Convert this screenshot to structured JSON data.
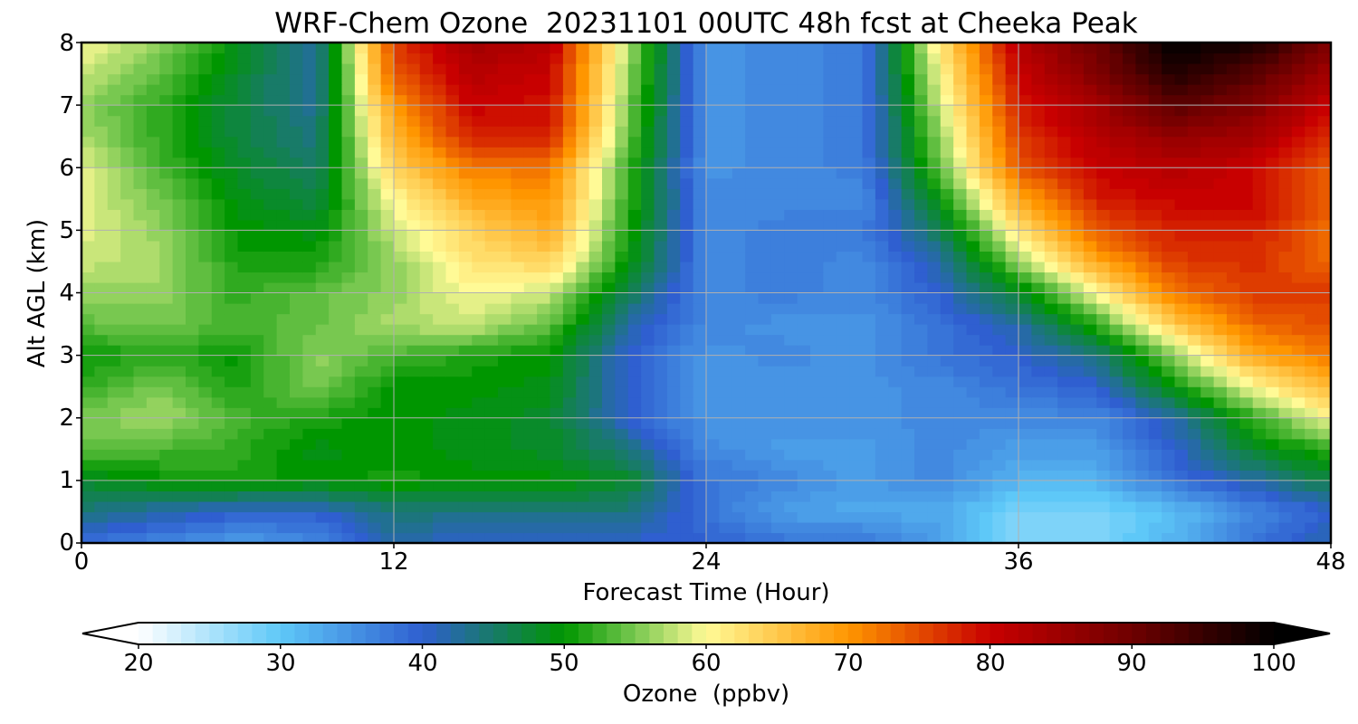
{
  "chart_data": {
    "type": "heatmap",
    "title": "WRF-Chem Ozone  20231101 00UTC 48h fcst at Cheeka Peak",
    "xlabel": "Forecast Time (Hour)",
    "ylabel": "Alt AGL (km)",
    "xlim": [
      0,
      48
    ],
    "ylim": [
      0,
      8
    ],
    "xticks": [
      "0",
      "12",
      "24",
      "36",
      "48"
    ],
    "yticks": [
      "0",
      "1",
      "2",
      "3",
      "4",
      "5",
      "6",
      "7",
      "8"
    ],
    "grid": true,
    "colorbar": {
      "label": "Ozone  (ppbv)",
      "ticks": [
        "20",
        "30",
        "40",
        "50",
        "60",
        "70",
        "80",
        "90",
        "100"
      ],
      "range": [
        20,
        100
      ],
      "extend": "both",
      "orientation": "horizontal",
      "stops": [
        {
          "v": 20,
          "c": "#ffffff"
        },
        {
          "v": 30,
          "c": "#5ec8f8"
        },
        {
          "v": 40,
          "c": "#2f5fd0"
        },
        {
          "v": 50,
          "c": "#009600"
        },
        {
          "v": 55,
          "c": "#78c850"
        },
        {
          "v": 60,
          "c": "#fffa96"
        },
        {
          "v": 70,
          "c": "#ff9600"
        },
        {
          "v": 80,
          "c": "#c80000"
        },
        {
          "v": 90,
          "c": "#6e0000"
        },
        {
          "v": 100,
          "c": "#000000"
        }
      ]
    },
    "x": [
      0,
      3,
      6,
      9,
      12,
      15,
      18,
      21,
      24,
      27,
      30,
      33,
      36,
      39,
      42,
      45,
      48
    ],
    "y": [
      0,
      0.5,
      1,
      1.5,
      2,
      2.5,
      3,
      3.5,
      4,
      4.5,
      5,
      5.5,
      6,
      6.5,
      7,
      7.5,
      8
    ],
    "z": [
      [
        38,
        36,
        34,
        36,
        42,
        40,
        40,
        40,
        40,
        38,
        38,
        34,
        28,
        28,
        32,
        38,
        42
      ],
      [
        44,
        42,
        40,
        40,
        44,
        44,
        44,
        44,
        38,
        34,
        33,
        33,
        28,
        28,
        31,
        36,
        40
      ],
      [
        48,
        50,
        51,
        50,
        51,
        50,
        50,
        48,
        38,
        36,
        34,
        36,
        32,
        32,
        38,
        42,
        47
      ],
      [
        54,
        53,
        52,
        49,
        50,
        49,
        48,
        44,
        36,
        34,
        34,
        36,
        34,
        34,
        40,
        48,
        52
      ],
      [
        55,
        57,
        53,
        51,
        50,
        49,
        48,
        40,
        35,
        35,
        35,
        36,
        36,
        36,
        42,
        52,
        60
      ],
      [
        52,
        55,
        51,
        55,
        50,
        50,
        49,
        40,
        35,
        35,
        35,
        36,
        38,
        40,
        50,
        60,
        67
      ],
      [
        50,
        52,
        50,
        56,
        53,
        51,
        50,
        40,
        35,
        36,
        35,
        38,
        40,
        44,
        56,
        68,
        72
      ],
      [
        54,
        55,
        53,
        54,
        57,
        58,
        54,
        42,
        36,
        35,
        35,
        38,
        42,
        52,
        65,
        73,
        75
      ],
      [
        56,
        56,
        52,
        54,
        56,
        60,
        58,
        46,
        36,
        37,
        36,
        40,
        48,
        60,
        72,
        76,
        76
      ],
      [
        58,
        57,
        51,
        51,
        56,
        62,
        64,
        50,
        36,
        37,
        36,
        42,
        56,
        68,
        76,
        77,
        73
      ],
      [
        59,
        56,
        50,
        49,
        58,
        64,
        68,
        51,
        36,
        37,
        37,
        46,
        62,
        74,
        78,
        78,
        73
      ],
      [
        59,
        55,
        49,
        47,
        60,
        68,
        70,
        52,
        36,
        36,
        36,
        50,
        68,
        78,
        80,
        80,
        73
      ],
      [
        59,
        53,
        48,
        45,
        64,
        72,
        72,
        52,
        35,
        36,
        37,
        54,
        74,
        80,
        82,
        80,
        74
      ],
      [
        57,
        52,
        47,
        44,
        67,
        78,
        78,
        54,
        35,
        36,
        37,
        56,
        76,
        82,
        86,
        84,
        77
      ],
      [
        56,
        52,
        47,
        43,
        70,
        80,
        79,
        55,
        35,
        36,
        37,
        58,
        78,
        84,
        92,
        88,
        80
      ],
      [
        58,
        54,
        48,
        42,
        74,
        82,
        80,
        56,
        35,
        36,
        37,
        60,
        80,
        88,
        97,
        92,
        84
      ],
      [
        60,
        56,
        49,
        42,
        76,
        84,
        82,
        57,
        35,
        36,
        37,
        62,
        82,
        90,
        100,
        98,
        88
      ]
    ]
  }
}
